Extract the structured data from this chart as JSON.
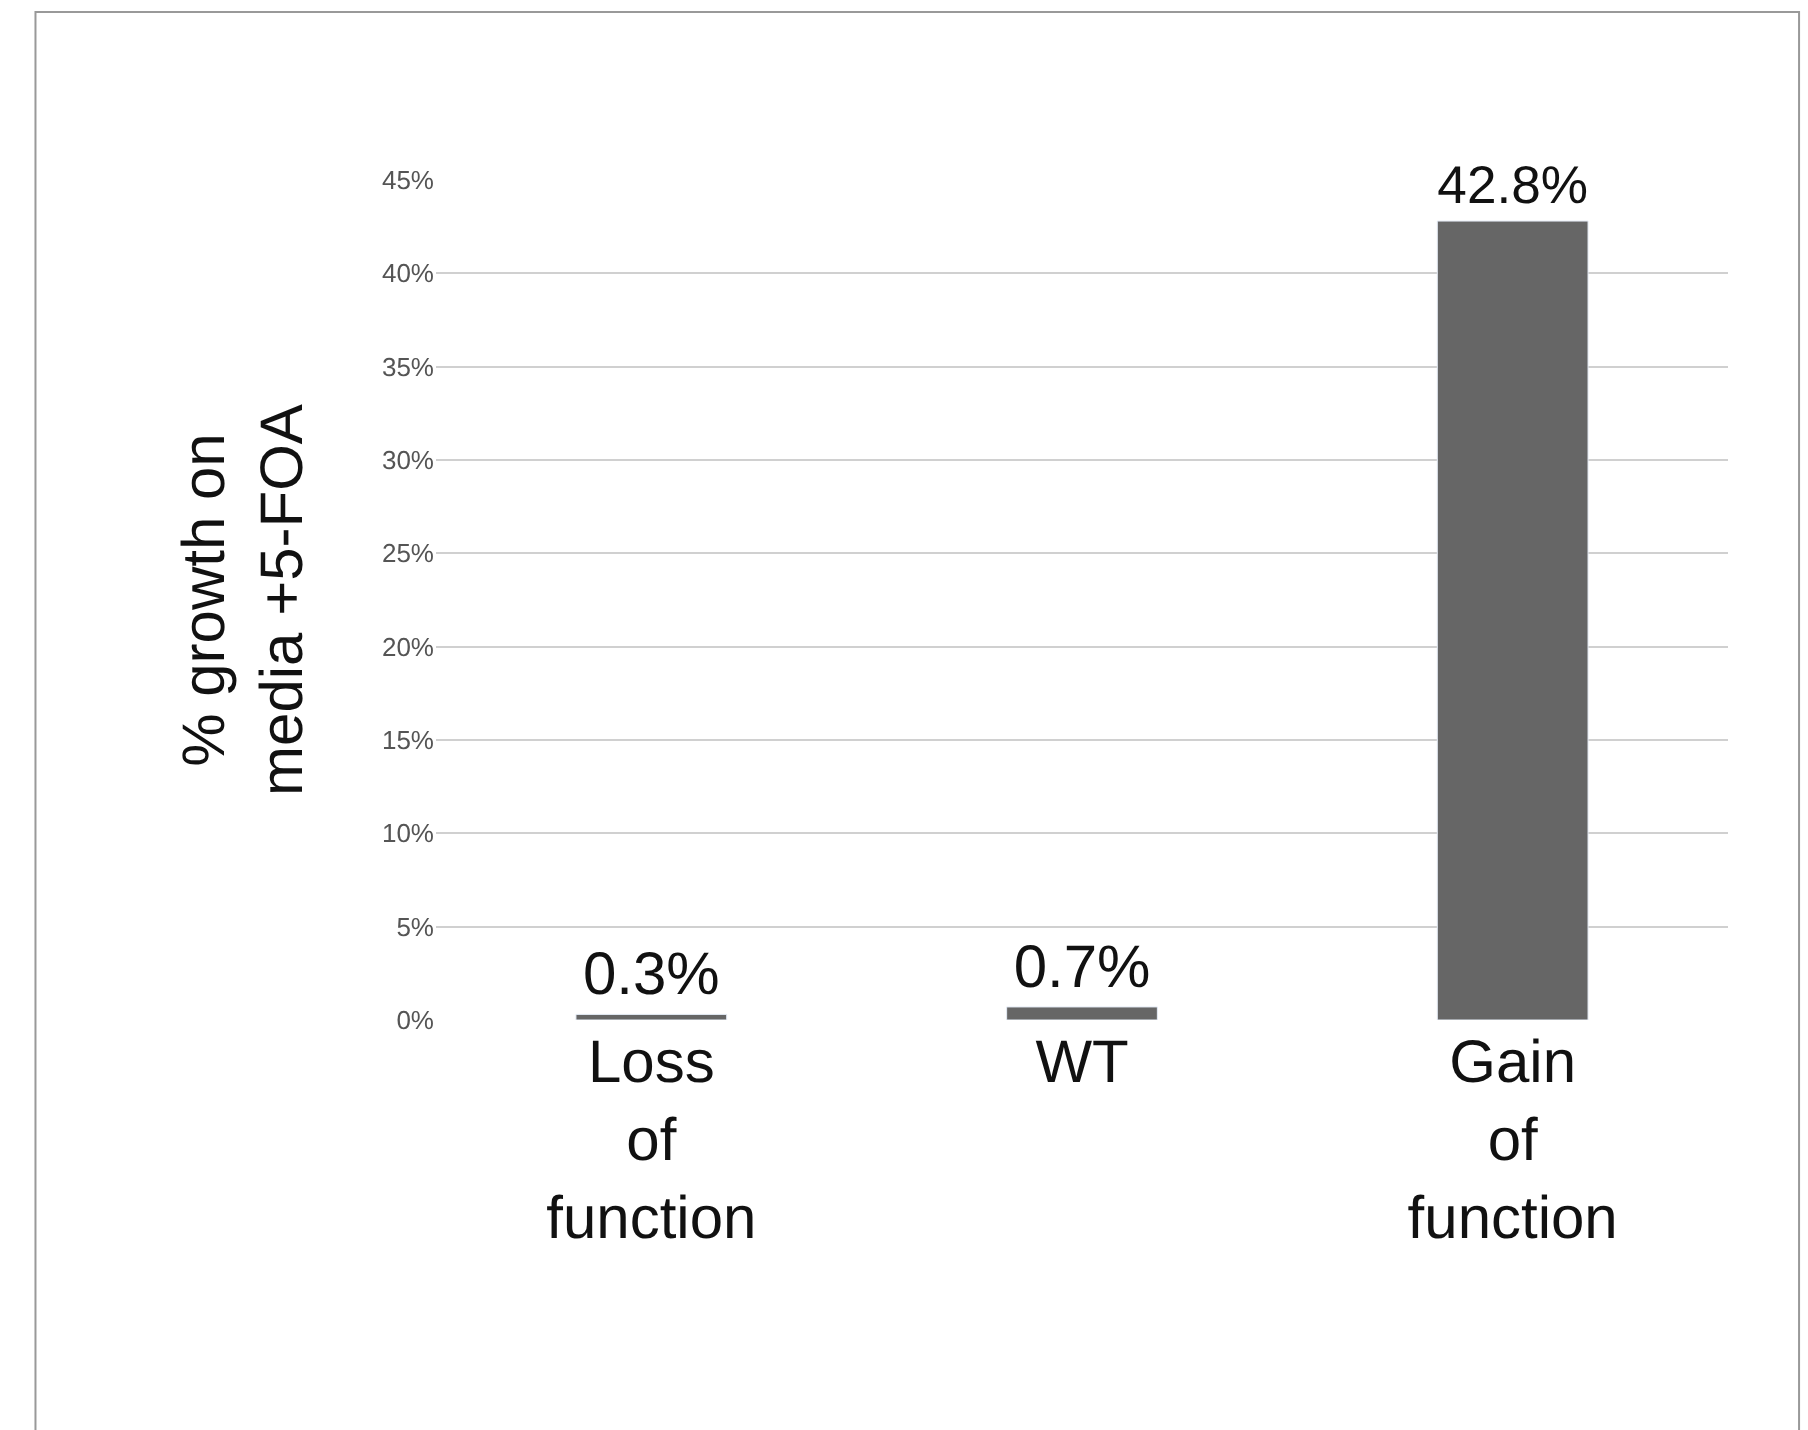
{
  "chart_data": {
    "type": "bar",
    "ylabel": "% growth on\nmedia +5-FOA",
    "categories": [
      "Loss\nof\nfunction",
      "WT",
      "Gain\nof\nfunction"
    ],
    "values": [
      0.3,
      0.7,
      42.8
    ],
    "color": "#666666",
    "value_labels": [
      "0.3%",
      "0.7%",
      "42.8%"
    ],
    "ylim": [
      0,
      45
    ],
    "yticks": [
      {
        "value": 0,
        "label": "0%"
      },
      {
        "value": 5,
        "label": "5%"
      },
      {
        "value": 10,
        "label": "10%"
      },
      {
        "value": 15,
        "label": "15%"
      },
      {
        "value": 20,
        "label": "20%"
      },
      {
        "value": 25,
        "label": "25%"
      },
      {
        "value": 30,
        "label": "30%"
      },
      {
        "value": 35,
        "label": "35%"
      },
      {
        "value": 40,
        "label": "40%"
      },
      {
        "value": 45,
        "label": "45%"
      }
    ],
    "grid": "y",
    "legend": false
  }
}
